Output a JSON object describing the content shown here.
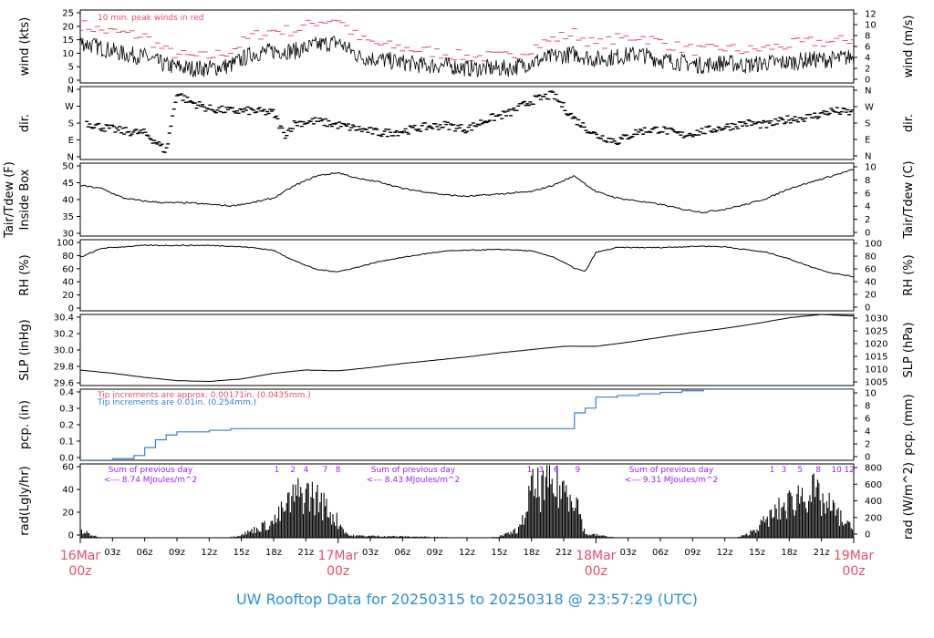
{
  "colors": {
    "red": "#e0506a",
    "blue": "#3a7fd0",
    "purple": "#a020f0",
    "black": "#000000"
  },
  "footer": {
    "prefix": "UW Rooftop Data for",
    "start": "20250315",
    "to": "to",
    "end": "20250318 @ 23:57:29",
    "tz": "(UTC)"
  },
  "x_axis": {
    "ticks": [
      "03z",
      "06z",
      "09z",
      "12z",
      "15z",
      "18z",
      "21z",
      "03z",
      "06z",
      "09z",
      "12z",
      "15z",
      "18z",
      "21z",
      "03z",
      "06z",
      "09z",
      "12z",
      "15z",
      "18z",
      "21z"
    ],
    "dates": [
      {
        "date": "16Mar",
        "time": "00z"
      },
      {
        "date": "17Mar",
        "time": "00z"
      },
      {
        "date": "18Mar",
        "time": "00z"
      },
      {
        "date": "19Mar",
        "time": "00z"
      }
    ]
  },
  "chart_data": [
    {
      "type": "line",
      "panel": "wind",
      "ylabel_left": "wind (kts)",
      "ylabel_right": "wind (m/s)",
      "ticks_left": [
        "25",
        "20",
        "15",
        "10",
        "5",
        "0"
      ],
      "ticks_right": [
        "12",
        "10",
        "8",
        "6",
        "4",
        "2",
        "0"
      ],
      "ylim": [
        0,
        25
      ],
      "annotation": "10 min. peak winds in red",
      "x_hours": [
        0,
        2,
        4,
        6,
        8,
        10,
        12,
        14,
        16,
        18,
        20,
        22,
        24,
        26,
        28,
        30,
        32,
        34,
        36,
        38,
        40,
        42,
        44,
        46,
        48,
        50,
        52,
        54,
        56,
        58,
        60,
        62,
        64,
        66,
        68,
        70,
        72
      ],
      "values": [
        14,
        12,
        10,
        9,
        6,
        5,
        5,
        6,
        10,
        11,
        11,
        13,
        14,
        9,
        8,
        7,
        6,
        6,
        5,
        5,
        5,
        7,
        9,
        10,
        8,
        9,
        10,
        8,
        7,
        6,
        7,
        6,
        7,
        7,
        8,
        8,
        9
      ],
      "gust_values": [
        20,
        18,
        17,
        16,
        11,
        9,
        9,
        11,
        16,
        18,
        18,
        21,
        22,
        15,
        13,
        12,
        11,
        10,
        9,
        9,
        9,
        12,
        15,
        17,
        13,
        15,
        16,
        14,
        12,
        11,
        12,
        11,
        12,
        13,
        14,
        14,
        15
      ]
    },
    {
      "type": "scatter",
      "panel": "direction",
      "ylabel_left": "dir.",
      "ylabel_right": "dir.",
      "ticks_left": [
        "N",
        "W",
        "S",
        "E",
        "N"
      ],
      "ticks_right": [
        "N",
        "W",
        "S",
        "E",
        "N"
      ],
      "ylim": [
        0,
        360
      ],
      "x_hours": [
        0,
        2,
        4,
        6,
        7,
        8,
        9,
        10,
        12,
        14,
        16,
        18,
        19,
        20,
        22,
        24,
        26,
        28,
        30,
        32,
        34,
        36,
        38,
        40,
        42,
        44,
        46,
        48,
        50,
        52,
        54,
        56,
        58,
        60,
        62,
        64,
        66,
        68,
        70,
        72
      ],
      "values": [
        190,
        160,
        140,
        130,
        90,
        40,
        330,
        290,
        250,
        240,
        240,
        230,
        120,
        180,
        190,
        170,
        150,
        130,
        140,
        160,
        170,
        150,
        200,
        230,
        290,
        320,
        200,
        120,
        90,
        140,
        150,
        120,
        140,
        160,
        180,
        170,
        200,
        210,
        240,
        230
      ]
    },
    {
      "type": "line",
      "panel": "temperature",
      "ylabel_left": "Tair/Tdew (F)",
      "ylabel_left2": "Inside Box",
      "ylabel_right": "Tair/Tdew (C)",
      "ticks_left": [
        "50",
        "45",
        "40",
        "35",
        "30"
      ],
      "ticks_right": [
        "10",
        "8",
        "6",
        "4",
        "2",
        "0"
      ],
      "ylim": [
        30,
        53
      ],
      "x_hours": [
        0,
        2,
        4,
        6,
        8,
        10,
        12,
        14,
        16,
        18,
        20,
        22,
        24,
        26,
        28,
        30,
        32,
        34,
        36,
        38,
        40,
        42,
        44,
        46,
        48,
        50,
        52,
        54,
        56,
        58,
        60,
        62,
        64,
        66,
        68,
        70,
        72
      ],
      "values": [
        46,
        45,
        42,
        41,
        40.5,
        40.5,
        40,
        39.5,
        40.5,
        42,
        46,
        49,
        50,
        48,
        47,
        45,
        44,
        43,
        42.5,
        43,
        43.5,
        44,
        46,
        49,
        44,
        42,
        41,
        40,
        38.5,
        37.5,
        38.5,
        40,
        42,
        45,
        47,
        49,
        51
      ]
    },
    {
      "type": "line",
      "panel": "humidity",
      "ylabel_left": "RH (%)",
      "ylabel_right": "RH (%)",
      "ticks_left": [
        "100",
        "80",
        "60",
        "40",
        "20",
        "0"
      ],
      "ticks_right": [
        "100",
        "80",
        "60",
        "40",
        "20",
        "0"
      ],
      "ylim": [
        0,
        100
      ],
      "x_hours": [
        0,
        2,
        4,
        6,
        8,
        10,
        12,
        14,
        16,
        18,
        20,
        22,
        24,
        26,
        28,
        30,
        32,
        34,
        36,
        38,
        40,
        42,
        44,
        46,
        47,
        48,
        50,
        52,
        54,
        56,
        58,
        60,
        62,
        64,
        66,
        68,
        70,
        72
      ],
      "values": [
        75,
        88,
        90,
        92,
        92,
        92,
        92,
        91,
        89,
        85,
        70,
        58,
        55,
        62,
        70,
        75,
        80,
        84,
        85,
        86,
        86,
        84,
        76,
        60,
        55,
        82,
        89,
        89,
        89,
        90,
        91,
        90,
        86,
        82,
        73,
        62,
        53,
        48
      ]
    },
    {
      "type": "line",
      "panel": "pressure",
      "ylabel_left": "SLP (inHg)",
      "ylabel_right": "SLP (hPa)",
      "ticks_left": [
        "30.4",
        "30.2",
        "30.0",
        "29.8",
        "29.6"
      ],
      "ticks_right": [
        "1030",
        "1025",
        "1020",
        "1015",
        "1010",
        "1005"
      ],
      "ylim": [
        29.55,
        30.42
      ],
      "x_hours": [
        0,
        3,
        6,
        9,
        12,
        15,
        18,
        21,
        24,
        27,
        30,
        33,
        36,
        39,
        42,
        45,
        48,
        51,
        54,
        57,
        60,
        63,
        66,
        69,
        72
      ],
      "values": [
        29.74,
        29.7,
        29.65,
        29.61,
        29.6,
        29.63,
        29.7,
        29.74,
        29.73,
        29.77,
        29.82,
        29.86,
        29.9,
        29.95,
        29.99,
        30.03,
        30.03,
        30.08,
        30.14,
        30.2,
        30.25,
        30.31,
        30.38,
        30.42,
        30.4
      ]
    },
    {
      "type": "line",
      "panel": "precipitation",
      "ylabel_left": "pcp. (in)",
      "ylabel_right": "pcp. (mm)",
      "ticks_left": [
        "0.4",
        "0.3",
        "0.2",
        "0.1",
        "0.0"
      ],
      "ticks_right": [
        "10",
        "8",
        "6",
        "4",
        "2",
        "0"
      ],
      "ylim": [
        0,
        0.45
      ],
      "notes": [
        "Tip increments are approx. 0.00171in. (0.0435mm.)",
        "Tip increments are 0.01in. (0.254mm.)"
      ],
      "x_hours": [
        0,
        2,
        3,
        4,
        5,
        6,
        7,
        8,
        9,
        10,
        12,
        14,
        16,
        18,
        20,
        22,
        24,
        30,
        36,
        42,
        45,
        46,
        47,
        48,
        50,
        52,
        54,
        56,
        58,
        60,
        66,
        72
      ],
      "values": [
        0,
        0,
        0.01,
        0.01,
        0.03,
        0.08,
        0.13,
        0.16,
        0.18,
        0.18,
        0.19,
        0.2,
        0.2,
        0.2,
        0.2,
        0.2,
        0.2,
        0.2,
        0.2,
        0.2,
        0.2,
        0.3,
        0.33,
        0.4,
        0.41,
        0.42,
        0.43,
        0.44,
        0.45,
        0.45,
        0.45,
        0.45
      ]
    },
    {
      "type": "area",
      "panel": "radiation",
      "ylabel_left": "rad(Lgly/hr)",
      "ylabel_right": "rad (W/m^2)",
      "ticks_left": [
        "60",
        "40",
        "20",
        "0"
      ],
      "ticks_right": [
        "800",
        "600",
        "400",
        "200",
        "0"
      ],
      "ylim": [
        0,
        70
      ],
      "annotations": [
        {
          "line1": "Sum of previous day",
          "line2": "<--- 8.74 MJoules/m^2"
        },
        {
          "line1": "Sum of previous day",
          "line2": "<--- 8.43 MJoules/m^2"
        },
        {
          "line1": "Sum of previous day",
          "line2": "<--- 9.31 MJoules/m^2"
        }
      ],
      "hour_marks": [
        {
          "hour": 18.3,
          "label": "1"
        },
        {
          "hour": 19.8,
          "label": "2"
        },
        {
          "hour": 21.0,
          "label": "4"
        },
        {
          "hour": 22.8,
          "label": "7"
        },
        {
          "hour": 24.0,
          "label": "8"
        },
        {
          "hour": 41.8,
          "label": "1"
        },
        {
          "hour": 42.9,
          "label": "3"
        },
        {
          "hour": 44.3,
          "label": "6"
        },
        {
          "hour": 46.3,
          "label": "9"
        },
        {
          "hour": 64.4,
          "label": "1"
        },
        {
          "hour": 65.5,
          "label": "3"
        },
        {
          "hour": 67.0,
          "label": "5"
        },
        {
          "hour": 68.7,
          "label": "8"
        },
        {
          "hour": 70.4,
          "label": "10"
        },
        {
          "hour": 71.6,
          "label": "12"
        }
      ],
      "x_hours": [
        0,
        1,
        2,
        13,
        14,
        15,
        16,
        17,
        18,
        19,
        20,
        21,
        22,
        23,
        24,
        25,
        38,
        39,
        40,
        41,
        42,
        43,
        44,
        45,
        46,
        47,
        48,
        49,
        50,
        61,
        62,
        63,
        64,
        65,
        66,
        67,
        68,
        69,
        70,
        71,
        72
      ],
      "values": [
        10,
        4,
        0,
        0,
        1,
        4,
        10,
        16,
        22,
        40,
        58,
        62,
        55,
        40,
        22,
        3,
        0,
        2,
        6,
        14,
        66,
        68,
        70,
        68,
        64,
        5,
        4,
        2,
        0,
        0,
        4,
        14,
        26,
        38,
        48,
        60,
        66,
        50,
        40,
        24,
        10
      ]
    }
  ]
}
